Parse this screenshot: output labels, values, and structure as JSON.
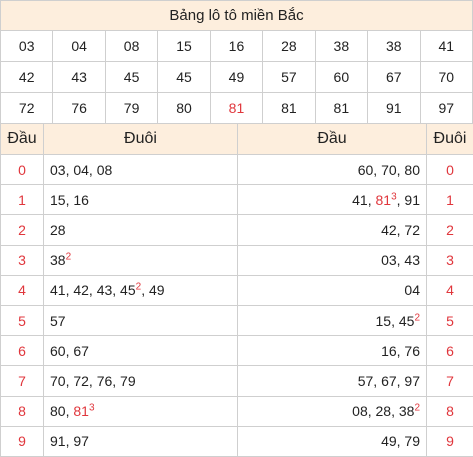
{
  "title": "Bảng lô tô miền Bắc",
  "numbers": [
    [
      "03",
      "04",
      "08",
      "15",
      "16",
      "28",
      "38",
      "38",
      "41"
    ],
    [
      "42",
      "43",
      "45",
      "45",
      "49",
      "57",
      "60",
      "67",
      "70"
    ],
    [
      "72",
      "76",
      "79",
      "80",
      "81",
      "81",
      "81",
      "91",
      "97"
    ]
  ],
  "highlight_number": "81",
  "headers": {
    "dau_left": "Đầu",
    "duoi_left": "Đuôi",
    "dau_right": "Đầu",
    "duoi_right": "Đuôi"
  },
  "rows": [
    {
      "digit": "0",
      "left": [
        {
          "t": "03"
        },
        {
          "t": ", 04, 08"
        }
      ],
      "right": [
        {
          "t": "60, 70, 80"
        }
      ]
    },
    {
      "digit": "1",
      "left": [
        {
          "t": "15, 16"
        }
      ],
      "right": [
        {
          "t": "41, "
        },
        {
          "t": "81",
          "c": "red"
        },
        {
          "t": "3",
          "c": "sup"
        },
        {
          "t": ", 91"
        }
      ]
    },
    {
      "digit": "2",
      "left": [
        {
          "t": "28"
        }
      ],
      "right": [
        {
          "t": "42, 72"
        }
      ]
    },
    {
      "digit": "3",
      "left": [
        {
          "t": "38"
        },
        {
          "t": "2",
          "c": "sup"
        }
      ],
      "right": [
        {
          "t": "03, 43"
        }
      ]
    },
    {
      "digit": "4",
      "left": [
        {
          "t": "41, 42, 43, 45"
        },
        {
          "t": "2",
          "c": "sup"
        },
        {
          "t": ", 49"
        }
      ],
      "right": [
        {
          "t": "04"
        }
      ]
    },
    {
      "digit": "5",
      "left": [
        {
          "t": "57"
        }
      ],
      "right": [
        {
          "t": "15, 45"
        },
        {
          "t": "2",
          "c": "sup"
        }
      ]
    },
    {
      "digit": "6",
      "left": [
        {
          "t": "60, 67"
        }
      ],
      "right": [
        {
          "t": "16, 76"
        }
      ]
    },
    {
      "digit": "7",
      "left": [
        {
          "t": "70, 72, 76, 79"
        }
      ],
      "right": [
        {
          "t": "57, 67, 97"
        }
      ]
    },
    {
      "digit": "8",
      "left": [
        {
          "t": "80, "
        },
        {
          "t": "81",
          "c": "red"
        },
        {
          "t": "3",
          "c": "sup"
        }
      ],
      "right": [
        {
          "t": "08, 28, 38"
        },
        {
          "t": "2",
          "c": "sup"
        }
      ]
    },
    {
      "digit": "9",
      "left": [
        {
          "t": "91, 97"
        }
      ],
      "right": [
        {
          "t": "49, 79"
        }
      ]
    }
  ],
  "colors": {
    "accent_red": "#e0363c",
    "header_bg": "#fdeedd",
    "border": "#cfcfcf"
  }
}
